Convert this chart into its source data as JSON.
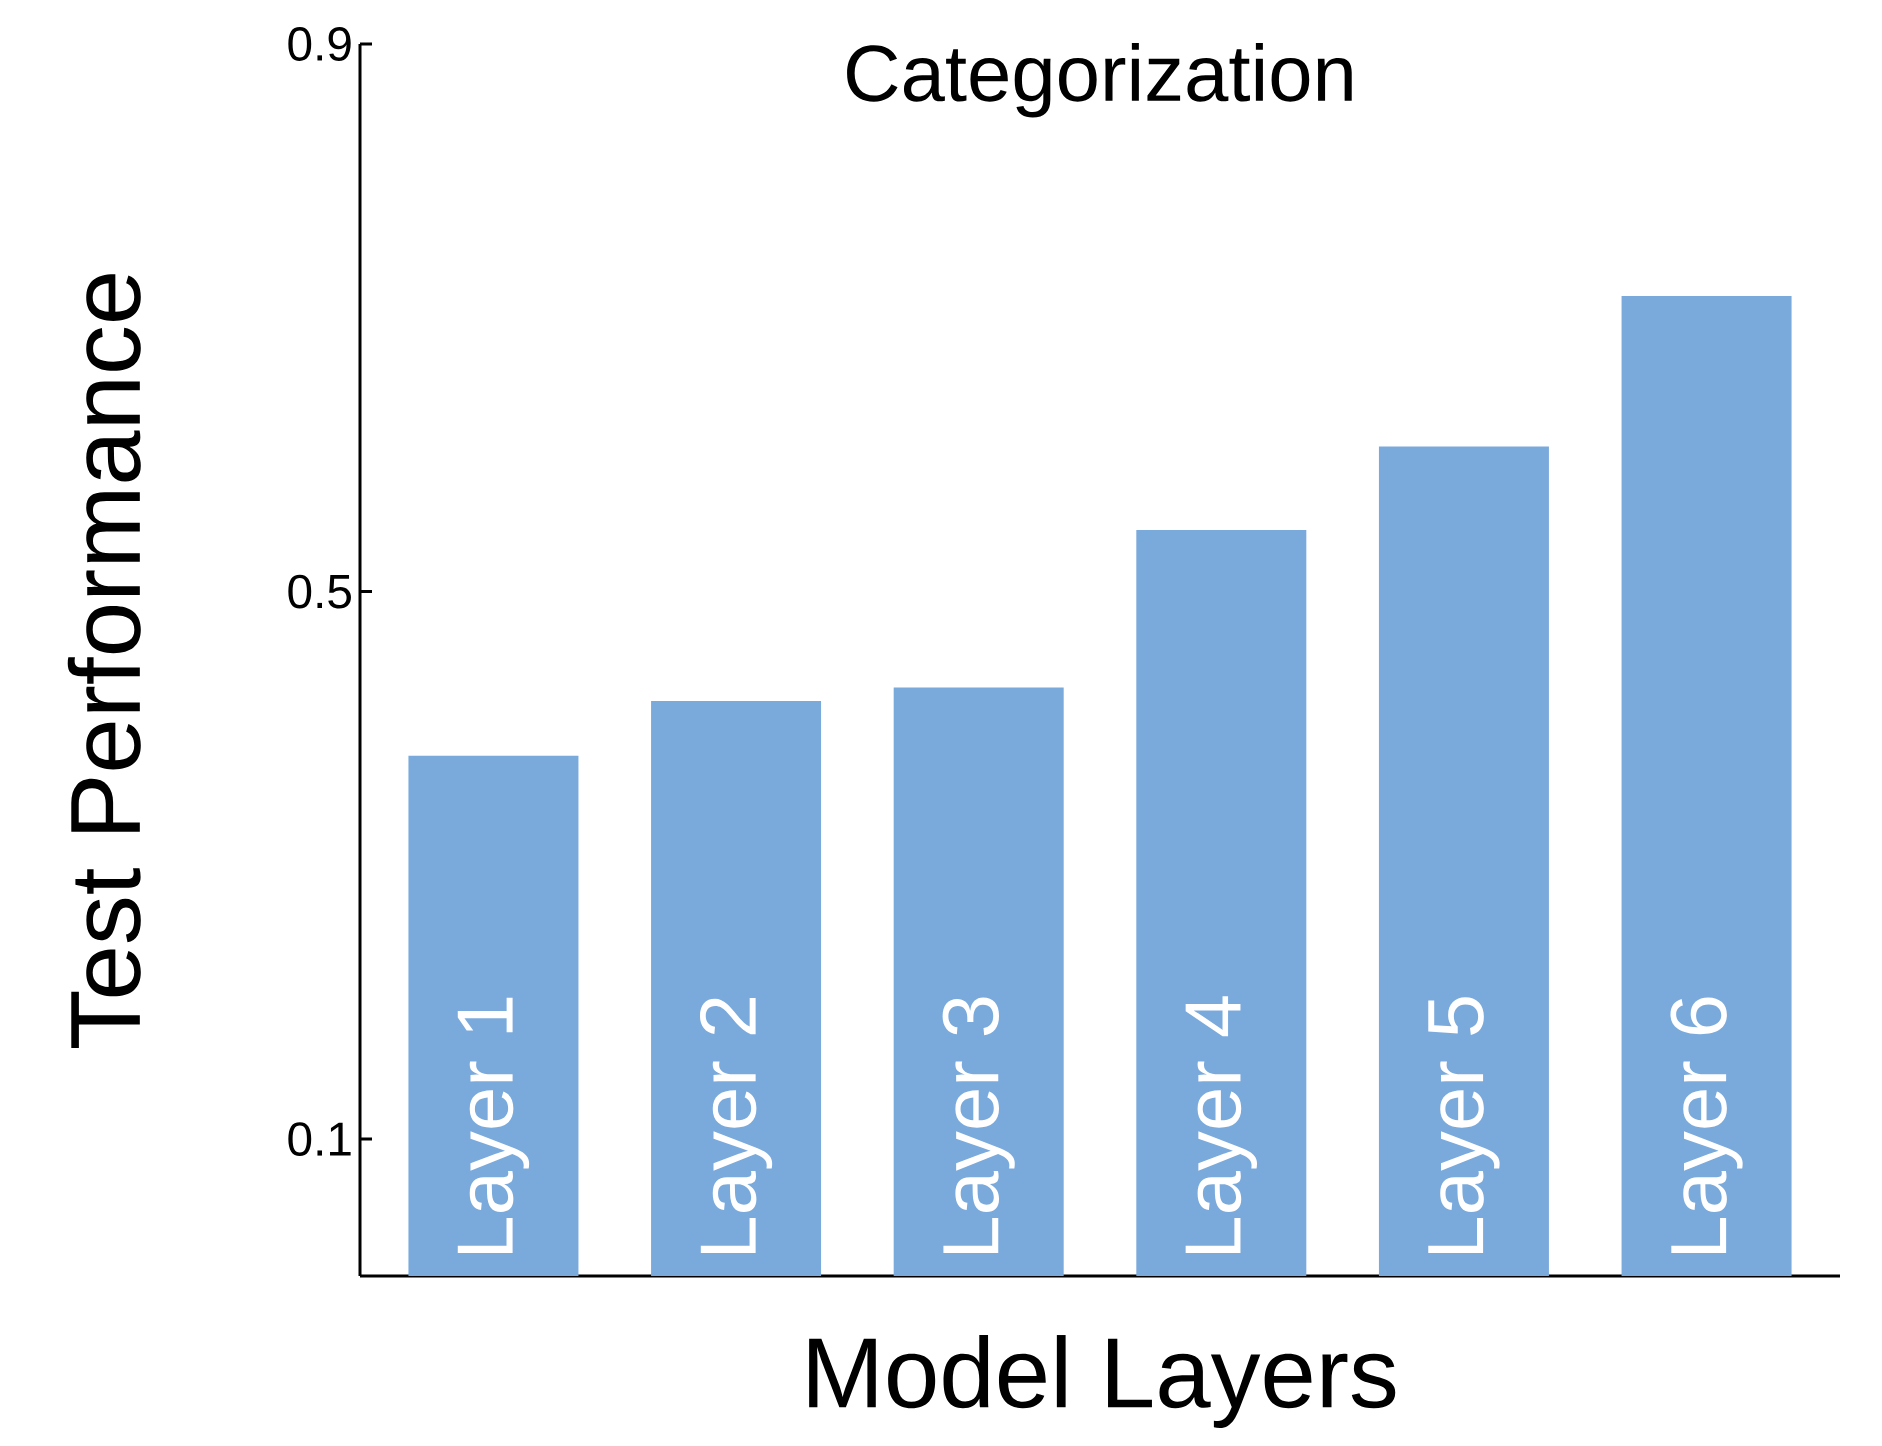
{
  "chart_data": {
    "type": "bar",
    "title": "Categorization",
    "xlabel": "Model Layers",
    "ylabel": "Test Performance",
    "categories": [
      "Layer 1",
      "Layer 2",
      "Layer 3",
      "Layer 4",
      "Layer 5",
      "Layer 6"
    ],
    "values": [
      0.38,
      0.42,
      0.43,
      0.545,
      0.606,
      0.716
    ],
    "color": "#7aaadc",
    "ylim": [
      0,
      0.9
    ],
    "yticks": [
      0.1,
      0.5,
      0.9
    ],
    "grid": false
  }
}
